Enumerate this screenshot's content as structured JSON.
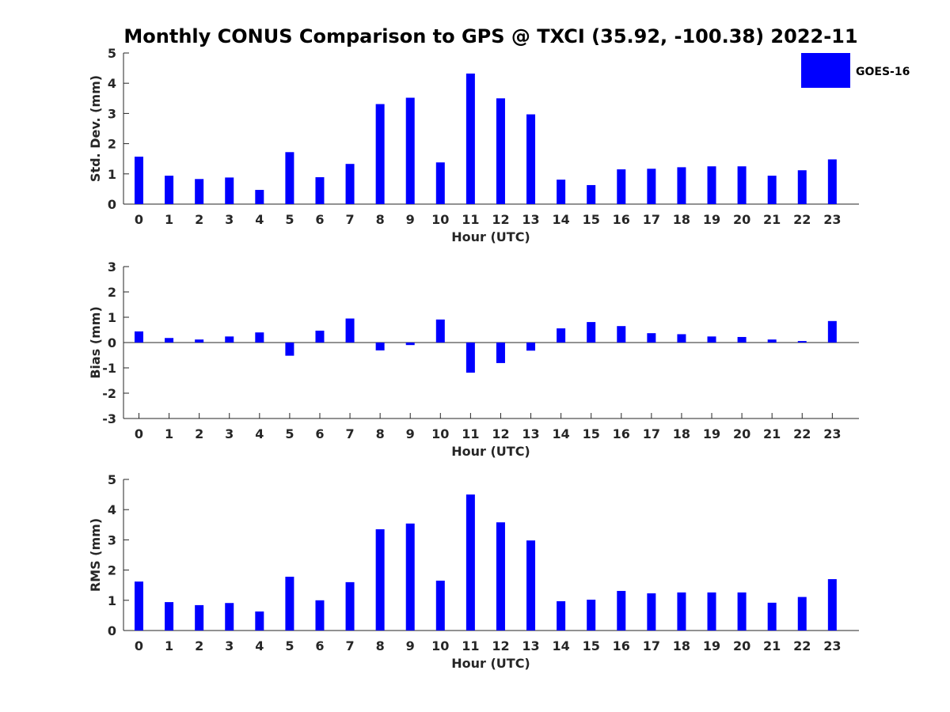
{
  "title": "Monthly CONUS Comparison to GPS @ TXCI (35.92, -100.38) 2022-11",
  "bar_color": "#0000FF",
  "legend": {
    "label": "GOES-16",
    "color": "#0000FF"
  },
  "chart_data": [
    {
      "type": "bar",
      "xlabel": "Hour (UTC)",
      "ylabel": "Std. Dev. (mm)",
      "ylim": [
        0,
        5
      ],
      "yticks": [
        0,
        1,
        2,
        3,
        4,
        5
      ],
      "categories": [
        "0",
        "1",
        "2",
        "3",
        "4",
        "5",
        "6",
        "7",
        "8",
        "9",
        "10",
        "11",
        "12",
        "13",
        "14",
        "15",
        "16",
        "17",
        "18",
        "19",
        "20",
        "21",
        "22",
        "23"
      ],
      "series": [
        {
          "name": "GOES-16",
          "values": [
            1.57,
            0.94,
            0.83,
            0.88,
            0.47,
            1.72,
            0.89,
            1.33,
            3.31,
            3.52,
            1.38,
            4.32,
            3.5,
            2.97,
            0.81,
            0.63,
            1.15,
            1.17,
            1.22,
            1.25,
            1.25,
            0.94,
            1.12,
            1.48
          ]
        }
      ]
    },
    {
      "type": "bar",
      "xlabel": "Hour (UTC)",
      "ylabel": "Bias (mm)",
      "ylim": [
        -3,
        3
      ],
      "yticks": [
        -3,
        -2,
        -1,
        0,
        1,
        2,
        3
      ],
      "categories": [
        "0",
        "1",
        "2",
        "3",
        "4",
        "5",
        "6",
        "7",
        "8",
        "9",
        "10",
        "11",
        "12",
        "13",
        "14",
        "15",
        "16",
        "17",
        "18",
        "19",
        "20",
        "21",
        "22",
        "23"
      ],
      "series": [
        {
          "name": "GOES-16",
          "values": [
            0.44,
            0.18,
            0.12,
            0.24,
            0.4,
            -0.52,
            0.47,
            0.95,
            -0.31,
            -0.1,
            0.91,
            -1.19,
            -0.81,
            -0.32,
            0.56,
            0.81,
            0.65,
            0.37,
            0.33,
            0.24,
            0.22,
            0.12,
            0.06,
            0.85
          ]
        }
      ]
    },
    {
      "type": "bar",
      "xlabel": "Hour (UTC)",
      "ylabel": "RMS (mm)",
      "ylim": [
        0,
        5
      ],
      "yticks": [
        0,
        1,
        2,
        3,
        4,
        5
      ],
      "categories": [
        "0",
        "1",
        "2",
        "3",
        "4",
        "5",
        "6",
        "7",
        "8",
        "9",
        "10",
        "11",
        "12",
        "13",
        "14",
        "15",
        "16",
        "17",
        "18",
        "19",
        "20",
        "21",
        "22",
        "23"
      ],
      "series": [
        {
          "name": "GOES-16",
          "values": [
            1.62,
            0.94,
            0.84,
            0.91,
            0.63,
            1.78,
            1.0,
            1.6,
            3.35,
            3.54,
            1.65,
            4.5,
            3.58,
            2.98,
            0.97,
            1.02,
            1.31,
            1.23,
            1.26,
            1.26,
            1.26,
            0.92,
            1.11,
            1.7
          ]
        }
      ]
    }
  ]
}
